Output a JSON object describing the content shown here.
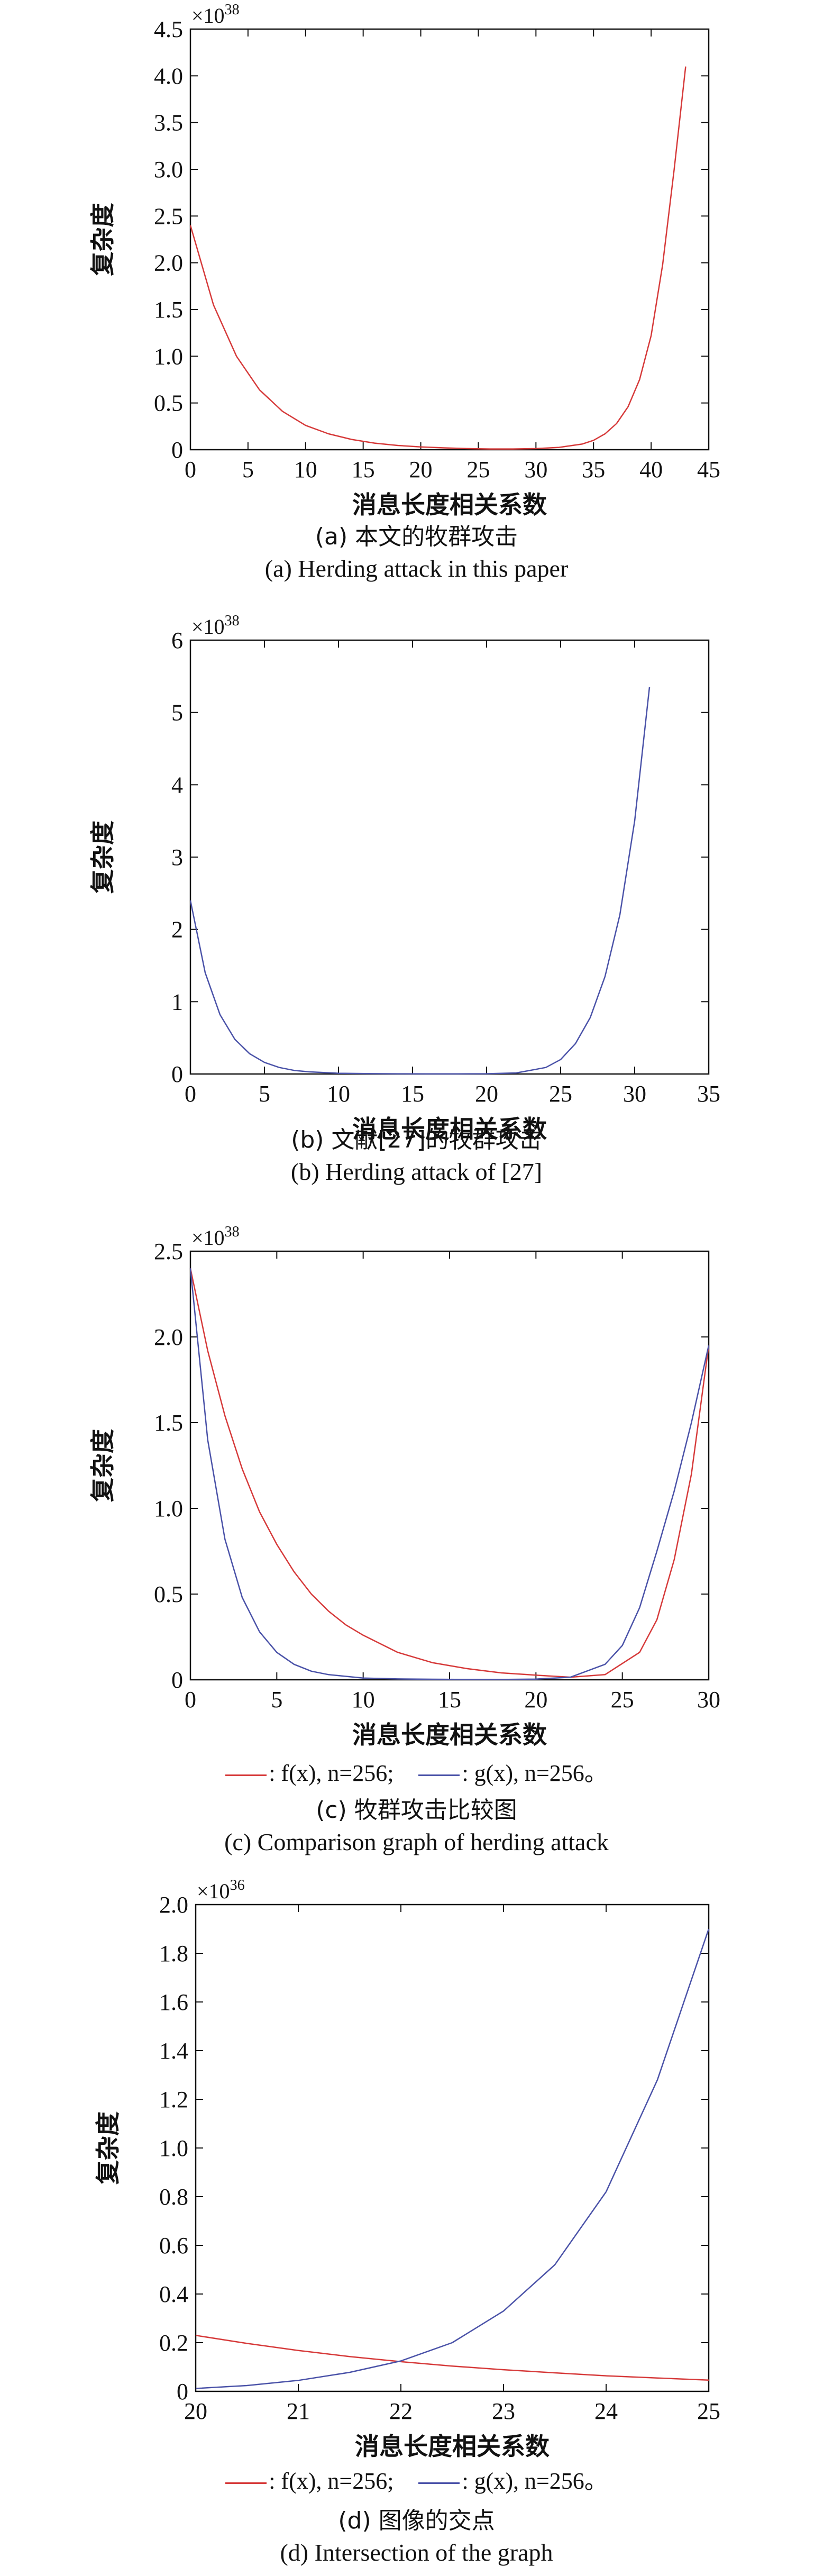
{
  "chart_data": [
    {
      "type": "line",
      "panel": "a",
      "exponent_label": "×10",
      "exponent": "38",
      "ylabel": "复杂度",
      "xlabel": "消息长度相关系数",
      "xlim": [
        0,
        45
      ],
      "ylim": [
        0,
        4.5
      ],
      "x_ticks": [
        "0",
        "5",
        "10",
        "15",
        "20",
        "25",
        "30",
        "35",
        "40",
        "45"
      ],
      "y_ticks": [
        "0",
        "0.5",
        "1.0",
        "1.5",
        "2.0",
        "2.5",
        "3.0",
        "3.5",
        "4.0",
        "4.5"
      ],
      "series": [
        {
          "color": "#d63a3a",
          "x": [
            0,
            2,
            4,
            6,
            8,
            10,
            12,
            14,
            16,
            18,
            20,
            22,
            24,
            26,
            28,
            30,
            32,
            34,
            35,
            36,
            37,
            38,
            39,
            40,
            41,
            42,
            43
          ],
          "y": [
            2.4,
            1.55,
            1.0,
            0.64,
            0.41,
            0.26,
            0.17,
            0.11,
            0.07,
            0.045,
            0.03,
            0.02,
            0.012,
            0.008,
            0.008,
            0.012,
            0.025,
            0.06,
            0.1,
            0.17,
            0.28,
            0.46,
            0.75,
            1.22,
            1.98,
            3.0,
            4.1
          ]
        }
      ],
      "caption_cn": "(a) 本文的牧群攻击",
      "caption_en": "(a) Herding attack in this paper"
    },
    {
      "type": "line",
      "panel": "b",
      "exponent_label": "×10",
      "exponent": "38",
      "ylabel": "复杂度",
      "xlabel": "消息长度相关系数",
      "xlim": [
        0,
        35
      ],
      "ylim": [
        0,
        6
      ],
      "x_ticks": [
        "0",
        "5",
        "10",
        "15",
        "20",
        "25",
        "30",
        "35"
      ],
      "y_ticks": [
        "0",
        "1",
        "2",
        "3",
        "4",
        "5",
        "6"
      ],
      "series": [
        {
          "color": "#4a52a8",
          "x": [
            0,
            1,
            2,
            3,
            4,
            5,
            6,
            7,
            8,
            10,
            12,
            14,
            16,
            18,
            20,
            22,
            24,
            25,
            26,
            27,
            28,
            29,
            30,
            31
          ],
          "y": [
            2.4,
            1.4,
            0.82,
            0.48,
            0.28,
            0.16,
            0.09,
            0.05,
            0.03,
            0.01,
            0.005,
            0.003,
            0.002,
            0.002,
            0.004,
            0.015,
            0.09,
            0.2,
            0.42,
            0.78,
            1.35,
            2.2,
            3.5,
            5.35
          ]
        }
      ],
      "caption_cn": "(b) 文献[27]的牧群攻击",
      "caption_en": "(b) Herding attack of [27]"
    },
    {
      "type": "line",
      "panel": "c",
      "exponent_label": "×10",
      "exponent": "38",
      "ylabel": "复杂度",
      "xlabel": "消息长度相关系数",
      "xlim": [
        0,
        30
      ],
      "ylim": [
        0,
        2.5
      ],
      "x_ticks": [
        "0",
        "5",
        "10",
        "15",
        "20",
        "25",
        "30"
      ],
      "y_ticks": [
        "0",
        "0.5",
        "1.0",
        "1.5",
        "2.0",
        "2.5"
      ],
      "series": [
        {
          "color": "#d63a3a",
          "x": [
            0,
            1,
            2,
            3,
            4,
            5,
            6,
            7,
            8,
            9,
            10,
            12,
            14,
            16,
            18,
            20,
            22,
            24,
            26,
            27,
            28,
            29,
            30
          ],
          "y": [
            2.4,
            1.92,
            1.54,
            1.23,
            0.98,
            0.79,
            0.63,
            0.5,
            0.4,
            0.32,
            0.26,
            0.16,
            0.1,
            0.065,
            0.04,
            0.027,
            0.015,
            0.03,
            0.16,
            0.35,
            0.7,
            1.2,
            1.95
          ]
        },
        {
          "color": "#4a52a8",
          "x": [
            0,
            1,
            2,
            3,
            4,
            5,
            6,
            7,
            8,
            10,
            12,
            14,
            16,
            18,
            20,
            22,
            24,
            25,
            26,
            27,
            28,
            29,
            30
          ],
          "y": [
            2.4,
            1.4,
            0.82,
            0.48,
            0.28,
            0.16,
            0.09,
            0.05,
            0.03,
            0.01,
            0.005,
            0.003,
            0.002,
            0.002,
            0.004,
            0.015,
            0.09,
            0.2,
            0.42,
            0.75,
            1.1,
            1.5,
            1.95
          ]
        }
      ],
      "legend": [
        {
          "color": "#d63a3a",
          "text": ": f(x), n=256;"
        },
        {
          "color": "#4a52a8",
          "text": ": g(x), n=256。"
        }
      ],
      "caption_cn": "(c) 牧群攻击比较图",
      "caption_en": "(c) Comparison graph of herding attack"
    },
    {
      "type": "line",
      "panel": "d",
      "exponent_label": "×10",
      "exponent": "36",
      "ylabel": "复杂度",
      "xlabel": "消息长度相关系数",
      "xlim": [
        20,
        25
      ],
      "ylim": [
        0,
        2.0
      ],
      "x_ticks": [
        "20",
        "21",
        "22",
        "23",
        "24",
        "25"
      ],
      "y_ticks": [
        "0",
        "0.2",
        "0.4",
        "0.6",
        "0.8",
        "1.0",
        "1.2",
        "1.4",
        "1.6",
        "1.8",
        "2.0"
      ],
      "series": [
        {
          "color": "#d63a3a",
          "x": [
            20,
            20.5,
            21,
            21.5,
            22,
            22.5,
            23,
            23.5,
            24,
            24.5,
            25
          ],
          "y": [
            0.23,
            0.197,
            0.168,
            0.143,
            0.122,
            0.104,
            0.089,
            0.076,
            0.064,
            0.055,
            0.046
          ]
        },
        {
          "color": "#4a52a8",
          "x": [
            20,
            20.5,
            21,
            21.5,
            22,
            22.5,
            23,
            23.5,
            24,
            24.5,
            25
          ],
          "y": [
            0.012,
            0.024,
            0.045,
            0.078,
            0.125,
            0.2,
            0.33,
            0.52,
            0.82,
            1.28,
            1.9
          ]
        }
      ],
      "legend": [
        {
          "color": "#d63a3a",
          "text": ": f(x), n=256;"
        },
        {
          "color": "#4a52a8",
          "text": ": g(x), n=256。"
        }
      ],
      "caption_cn": "(d) 图像的交点",
      "caption_en": "(d) Intersection of the graph"
    }
  ]
}
